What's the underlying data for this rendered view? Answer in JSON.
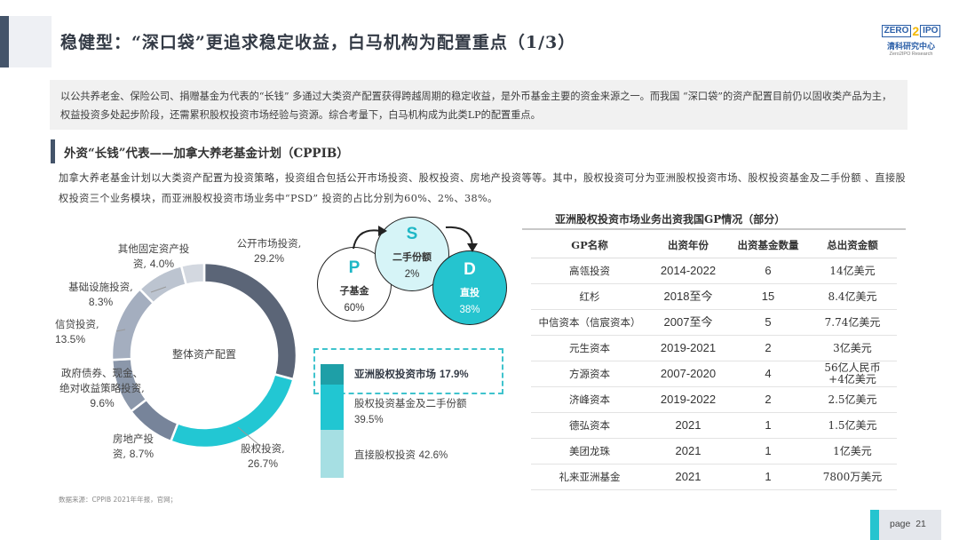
{
  "header": {
    "title": "稳健型：“深口袋”更追求稳定收益，白马机构为配置重点（1/3）",
    "logo": {
      "left": "ZERO",
      "mid": "2",
      "right": "IPO",
      "cn": "清科研究中心",
      "en": "Zero2IPO Research"
    }
  },
  "intro": {
    "text": "以公共养老金、保险公司、捐赠基金为代表的“长钱” 多通过大类资产配置获得跨越周期的稳定收益，是外币基金主要的资金来源之一。而我国 “深口袋”的资产配置目前仍以固收类产品为主，权益投资多处起步阶段，还需累积股权投资市场经验与资源。综合考量下，白马机构成为此类LP的配置重点。"
  },
  "section": {
    "title": "外资“长钱”代表——加拿大养老基金计划（CPPIB）",
    "description": "加拿大养老基金计划以大类资产配置为投资策略，投资组合包括公开市场投资、股权投资、房地产投资等等。其中，股权投资可分为亚洲股权投资市场、股权投资基金及二手份额 、直接股权投资三个业务模块，而亚洲股权投资市场业务中“PSD” 投资的占比分别为60%、2%、38%。"
  },
  "chart_data": [
    {
      "type": "pie",
      "title": "整体资产配置",
      "categories": [
        "公开市场投资",
        "股权投资",
        "房地产投资",
        "政府债券、现金、绝对收益策略投资",
        "信贷投资",
        "基础设施投资",
        "其他固定资产投资"
      ],
      "values": [
        29.2,
        26.7,
        8.7,
        9.6,
        13.5,
        8.3,
        4.0
      ],
      "colors": [
        "#5b6577",
        "#22c7d3",
        "#77849a",
        "#8b97aa",
        "#a4aebf",
        "#bcc4d0",
        "#d3d8e0"
      ],
      "unit": "%"
    },
    {
      "type": "bar",
      "title": "股权投资构成",
      "categories": [
        "亚洲股权投资市场",
        "股权投资基金及二手份额",
        "直接股权投资"
      ],
      "values": [
        17.9,
        39.5,
        42.6
      ],
      "colors": [
        "#1e9fa7",
        "#21c6d2",
        "#a6dfe3"
      ],
      "unit": "%",
      "stacked": true
    },
    {
      "type": "pie",
      "title": "亚洲股权投资市场PSD占比",
      "categories": [
        "子基金 (P)",
        "二手份额 (S)",
        "直投 (D)"
      ],
      "values": [
        60,
        2,
        38
      ],
      "unit": "%"
    }
  ],
  "donut": {
    "center": "整体资产配置",
    "labels": [
      {
        "name": "公开市场投资,",
        "pct": "29.2%"
      },
      {
        "name": "股权投资,",
        "pct": "26.7%"
      },
      {
        "name": "房地产投",
        "name2": "资,",
        "pct": "8.7%"
      },
      {
        "name": "政府债券、现金、",
        "name2": "绝对收益策略投资,",
        "pct": "9.6%"
      },
      {
        "name": "信贷投资,",
        "pct": "13.5%"
      },
      {
        "name": "基础设施投资,",
        "pct": "8.3%"
      },
      {
        "name": "其他固定资产投",
        "name2": "资,",
        "pct": "4.0%"
      }
    ]
  },
  "psd": {
    "p": {
      "letter": "P",
      "label": "子基金",
      "pct": "60%"
    },
    "s": {
      "letter": "S",
      "label": "二手份额",
      "pct": "2%"
    },
    "d": {
      "letter": "D",
      "label": "直投",
      "pct": "38%"
    }
  },
  "stack": {
    "seg1": {
      "label": "亚洲股权投资市场",
      "pct": "17.9%"
    },
    "seg2": {
      "label": "股权投资基金及二手份额",
      "pct": "39.5%"
    },
    "seg3": {
      "label": "直接股权投资",
      "pct": "42.6%"
    }
  },
  "table": {
    "title": "亚洲股权投资市场业务出资我国GP情况（部分）",
    "headers": [
      "GP名称",
      "出资年份",
      "出资基金数量",
      "总出资金额"
    ],
    "rows": [
      [
        "高瓴投资",
        "2014-2022",
        "6",
        "14亿美元"
      ],
      [
        "红杉",
        "2018至今",
        "15",
        "8.4亿美元"
      ],
      [
        "中信资本（信宸资本）",
        "2007至今",
        "5",
        "7.74亿美元"
      ],
      [
        "元生资本",
        "2019-2021",
        "2",
        "3亿美元"
      ],
      [
        "方源资本",
        "2007-2020",
        "4",
        "56亿人民币 +4亿美元"
      ],
      [
        "济峰资本",
        "2019-2022",
        "2",
        "2.5亿美元"
      ],
      [
        "德弘资本",
        "2021",
        "1",
        "1.5亿美元"
      ],
      [
        "美团龙珠",
        "2021",
        "1",
        "1亿美元"
      ],
      [
        "礼来亚洲基金",
        "2021",
        "1",
        "7800万美元"
      ]
    ]
  },
  "footer": {
    "source": "数据来源：CPPIB 2021年年报，官网；",
    "page_label": "page",
    "page_number": "21"
  }
}
